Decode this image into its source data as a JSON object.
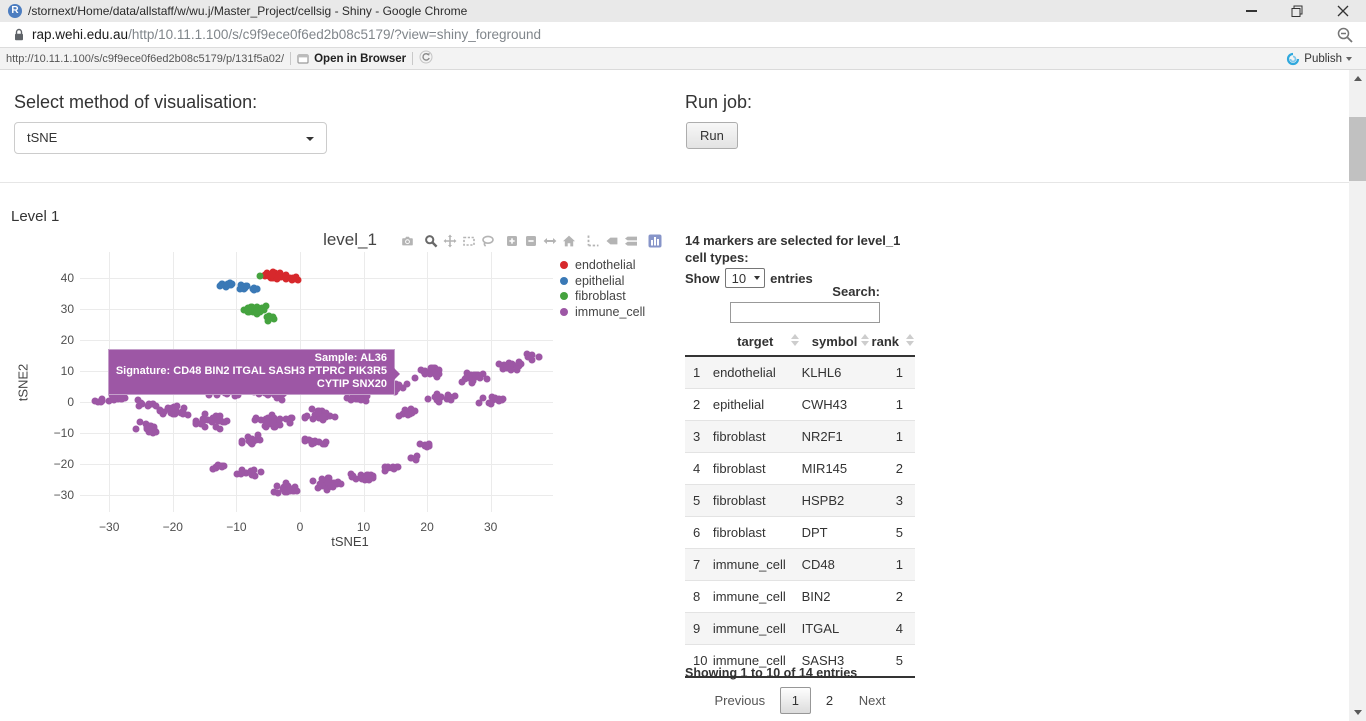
{
  "window": {
    "title": "/stornext/Home/data/allstaff/w/wu.j/Master_Project/cellsig - Shiny - Google Chrome",
    "app_icon_letter": "R"
  },
  "browser": {
    "domain": "rap.wehi.edu.au",
    "path": "/http/10.11.1.100/s/c9f9ece0f6ed2b08c5179/?view=shiny_foreground"
  },
  "viewer_toolbar": {
    "url": "http://10.11.1.100/s/c9f9ece0f6ed2b08c5179/p/131f5a02/",
    "open_in_browser_label": "Open in Browser",
    "publish_label": "Publish",
    "icons": [
      "open-in-browser-icon",
      "reload-icon",
      "publish-icon"
    ]
  },
  "controls": {
    "method_label": "Select method of visualisation:",
    "method_value": "tSNE",
    "run_label": "Run job:",
    "run_button_label": "Run"
  },
  "section": {
    "level_heading": "Level 1"
  },
  "chart_data": {
    "type": "scatter",
    "title": "level_1",
    "xlabel": "tSNE1",
    "ylabel": "tSNE2",
    "xlim": [
      -34.6,
      39.8
    ],
    "ylim": [
      -35.5,
      48.4
    ],
    "xticks": [
      -30,
      -20,
      -10,
      0,
      10,
      20,
      30
    ],
    "yticks": [
      -30,
      -20,
      -10,
      0,
      10,
      20,
      30,
      40
    ],
    "grid": true,
    "legend_position": "right",
    "modebar": {
      "groups": [
        [
          "camera"
        ],
        [
          "zoom",
          "pan",
          "box-select",
          "lasso-select"
        ],
        [
          "zoom-in",
          "zoom-out",
          "autoscale",
          "reset-axes"
        ],
        [
          "spike-lines",
          "hover-closest",
          "hover-compare"
        ],
        [
          "plotly-logo"
        ]
      ],
      "active": "zoom"
    },
    "series": [
      {
        "name": "endothelial",
        "color": "#d7282c",
        "blobs": [
          [
            -3.8,
            41.0,
            2.2,
            1.4,
            30
          ],
          [
            -1.2,
            39.8,
            1.4,
            1.0,
            10
          ]
        ]
      },
      {
        "name": "epithelial",
        "color": "#3a79b6",
        "blobs": [
          [
            -11.8,
            37.8,
            1.5,
            1.0,
            14
          ],
          [
            -9.0,
            37.0,
            1.2,
            0.9,
            10
          ],
          [
            -6.8,
            36.6,
            0.8,
            0.7,
            5
          ]
        ]
      },
      {
        "name": "fibroblast",
        "color": "#45a33f",
        "blobs": [
          [
            -7.2,
            29.8,
            2.0,
            1.6,
            30
          ],
          [
            -5.2,
            27.0,
            1.2,
            1.0,
            8
          ],
          [
            -6.2,
            40.8,
            0.15,
            0.15,
            1
          ]
        ]
      },
      {
        "name": "immune_cell",
        "color": "#9d57a5",
        "blobs": [
          [
            -31.5,
            0.5,
            1.2,
            1.0,
            5
          ],
          [
            -29,
            1.0,
            2.2,
            1.5,
            12
          ],
          [
            -24,
            -0.5,
            2.0,
            1.3,
            10
          ],
          [
            -24,
            -8.5,
            2.5,
            2.2,
            16
          ],
          [
            -20,
            -3,
            2.5,
            2.5,
            20
          ],
          [
            -14,
            -6,
            3.0,
            2.8,
            26
          ],
          [
            -12,
            3,
            3.0,
            1.6,
            18
          ],
          [
            -5,
            2.5,
            3.5,
            1.8,
            20
          ],
          [
            -4,
            -6,
            3.5,
            2.8,
            28
          ],
          [
            3,
            -4.5,
            3.0,
            2.5,
            22
          ],
          [
            -7.5,
            -12,
            2.5,
            1.8,
            14
          ],
          [
            2.5,
            -13,
            2.8,
            1.8,
            12
          ],
          [
            9,
            1.5,
            2.5,
            2.0,
            16
          ],
          [
            15,
            5,
            2.0,
            2.0,
            14
          ],
          [
            20,
            9.5,
            2.8,
            2.2,
            20
          ],
          [
            27,
            8,
            2.8,
            2.2,
            18
          ],
          [
            33,
            11.5,
            2.2,
            1.8,
            14
          ],
          [
            36.5,
            14.5,
            1.5,
            1.2,
            8
          ],
          [
            22,
            1.5,
            2.8,
            2.2,
            16
          ],
          [
            30,
            0.5,
            2.5,
            1.8,
            12
          ],
          [
            17,
            -3,
            2.0,
            1.8,
            10
          ],
          [
            20,
            -14,
            1.5,
            1.3,
            8
          ],
          [
            -13,
            -21,
            2.0,
            1.3,
            10
          ],
          [
            -8,
            -22.5,
            2.3,
            1.4,
            12
          ],
          [
            -2,
            -28,
            2.8,
            2.0,
            18
          ],
          [
            4,
            -26.5,
            2.8,
            2.2,
            22
          ],
          [
            10,
            -24,
            2.5,
            1.8,
            16
          ],
          [
            14.5,
            -21.5,
            1.8,
            1.4,
            10
          ],
          [
            18.5,
            -18,
            1.2,
            1.0,
            6
          ]
        ]
      }
    ],
    "tooltip": {
      "line1": "Sample:  AL36",
      "line2": "Signature:  CD48 BIN2 ITGAL SASH3 PTPRC PIK3R5",
      "line3": "CYTIP SNX20",
      "color": "#9d57a5"
    }
  },
  "markers_panel": {
    "header_line1": "14 markers are selected for level_1",
    "header_line2": "cell types:",
    "show_label": "Show",
    "show_value": "10",
    "entries_label": "entries",
    "search_label": "Search:",
    "search_value": "",
    "table": {
      "columns": [
        "",
        "target",
        "symbol",
        "rank"
      ],
      "rows": [
        [
          "1",
          "endothelial",
          "KLHL6",
          "1"
        ],
        [
          "2",
          "epithelial",
          "CWH43",
          "1"
        ],
        [
          "3",
          "fibroblast",
          "NR2F1",
          "1"
        ],
        [
          "4",
          "fibroblast",
          "MIR145",
          "2"
        ],
        [
          "5",
          "fibroblast",
          "HSPB2",
          "3"
        ],
        [
          "6",
          "fibroblast",
          "DPT",
          "5"
        ],
        [
          "7",
          "immune_cell",
          "CD48",
          "1"
        ],
        [
          "8",
          "immune_cell",
          "BIN2",
          "2"
        ],
        [
          "9",
          "immune_cell",
          "ITGAL",
          "4"
        ],
        [
          "10",
          "immune_cell",
          "SASH3",
          "5"
        ]
      ]
    },
    "footer": "Showing 1 to 10 of 14 entries",
    "pagination": {
      "previous": "Previous",
      "pages": [
        "1",
        "2"
      ],
      "active": "1",
      "next": "Next"
    }
  }
}
